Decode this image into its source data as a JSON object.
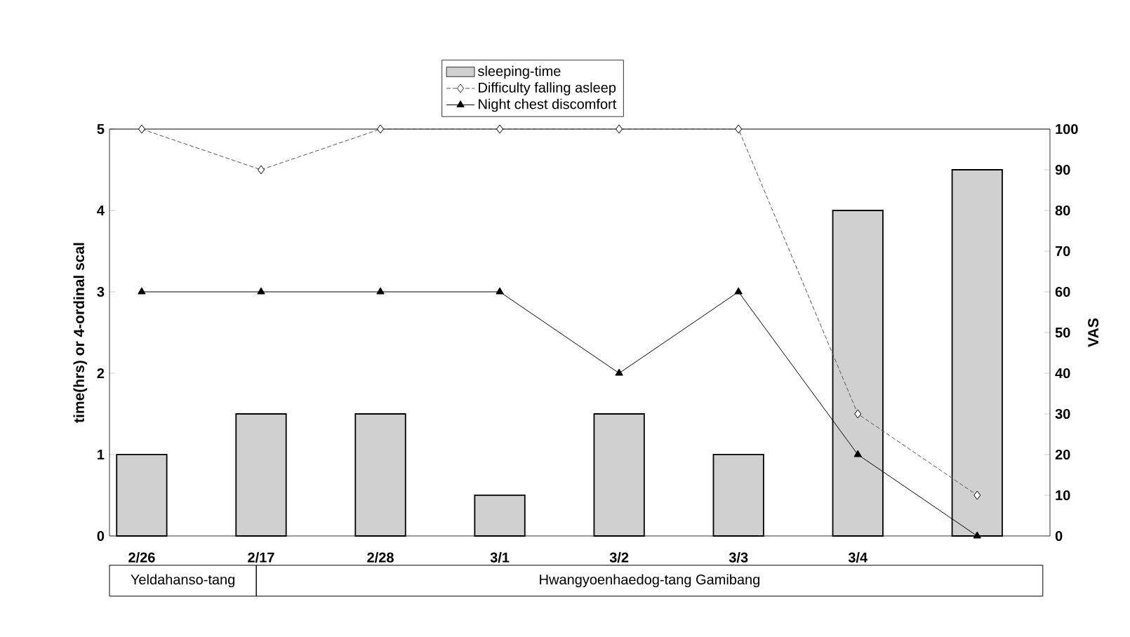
{
  "chart_data": {
    "type": "bar",
    "ylabel": "time(hrs) or 4-ordinal scal",
    "y2label": "VAS",
    "categories": [
      "2/26",
      "2/17",
      "2/28",
      "3/1",
      "3/2",
      "3/3",
      "3/4",
      null
    ],
    "series": [
      {
        "name": "sleeping-time",
        "color": "#d0d0d0",
        "values": [
          1,
          1.5,
          1.5,
          0.5,
          1.5,
          1,
          4,
          4.5
        ]
      },
      {
        "name": "Difficulty falling asleep",
        "type": "line",
        "axis": "y2",
        "color": "#555555",
        "marker": "diamond",
        "line_style": "dashed",
        "values": [
          100,
          90,
          100,
          100,
          100,
          100,
          30,
          10
        ]
      },
      {
        "name": "Night chest discomfort",
        "type": "line",
        "color": "#000000",
        "marker": "triangle",
        "line_style": "solid",
        "values": [
          3,
          3,
          3,
          3,
          2,
          3,
          1,
          0
        ]
      }
    ],
    "ylim": [
      0,
      5
    ],
    "yticks": [
      0,
      1,
      2,
      3,
      4,
      5
    ],
    "y2lim": [
      0,
      100
    ],
    "y2ticks": [
      0,
      10,
      20,
      30,
      40,
      50,
      60,
      70,
      80,
      90,
      100
    ],
    "legend": "top",
    "grid": false,
    "annotations": [
      "Yeldahanso-tang",
      "Hwangyoenhaedog-tang Gamibang"
    ]
  }
}
